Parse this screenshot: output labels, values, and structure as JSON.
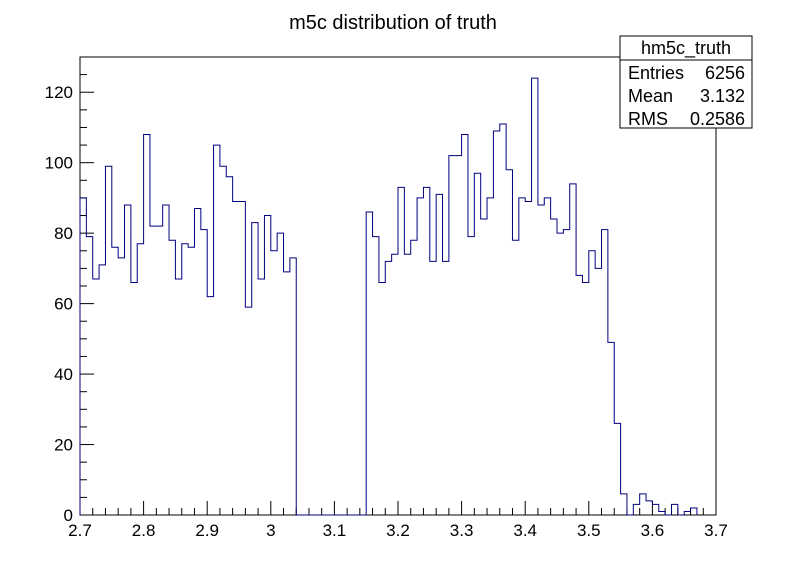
{
  "chart_data": {
    "type": "bar",
    "histogram": true,
    "title": "m5c distribution of truth",
    "xlabel": "",
    "ylabel": "",
    "xlim": [
      2.7,
      3.7
    ],
    "ylim": [
      0,
      130
    ],
    "grid": false,
    "bin_width": 0.01,
    "x_ticks": [
      2.7,
      2.8,
      2.9,
      3.0,
      3.1,
      3.2,
      3.3,
      3.4,
      3.5,
      3.6,
      3.7
    ],
    "x_tick_labels": [
      "2.7",
      "2.8",
      "2.9",
      "3",
      "3.1",
      "3.2",
      "3.3",
      "3.4",
      "3.5",
      "3.6",
      "3.7"
    ],
    "y_ticks": [
      0,
      20,
      40,
      60,
      80,
      100,
      120
    ],
    "y_tick_labels": [
      "0",
      "20",
      "40",
      "60",
      "80",
      "100",
      "120"
    ],
    "series": [
      {
        "color": "#000080",
        "values": [
          90,
          79,
          67,
          71,
          99,
          76,
          73,
          88,
          66,
          77,
          108,
          82,
          82,
          88,
          78,
          67,
          77,
          76,
          87,
          81,
          62,
          105,
          99,
          96,
          89,
          89,
          59,
          83,
          67,
          85,
          75,
          80,
          69,
          73,
          0,
          0,
          0,
          0,
          0,
          0,
          0,
          0,
          0,
          0,
          0,
          86,
          79,
          66,
          72,
          74,
          93,
          74,
          78,
          90,
          93,
          72,
          91,
          72,
          102,
          102,
          108,
          79,
          97,
          84,
          90,
          109,
          111,
          98,
          78,
          90,
          89,
          124,
          88,
          90,
          84,
          80,
          81,
          94,
          68,
          66,
          75,
          70,
          81,
          49,
          26,
          6,
          0,
          3,
          6,
          4,
          3,
          1,
          0,
          3,
          0,
          1,
          2
        ]
      }
    ]
  },
  "stats_box": {
    "name": "hm5c_truth",
    "rows": [
      {
        "label": "Entries",
        "value": "6256"
      },
      {
        "label": "Mean",
        "value": "3.132"
      },
      {
        "label": "RMS",
        "value": "0.2586"
      }
    ]
  }
}
